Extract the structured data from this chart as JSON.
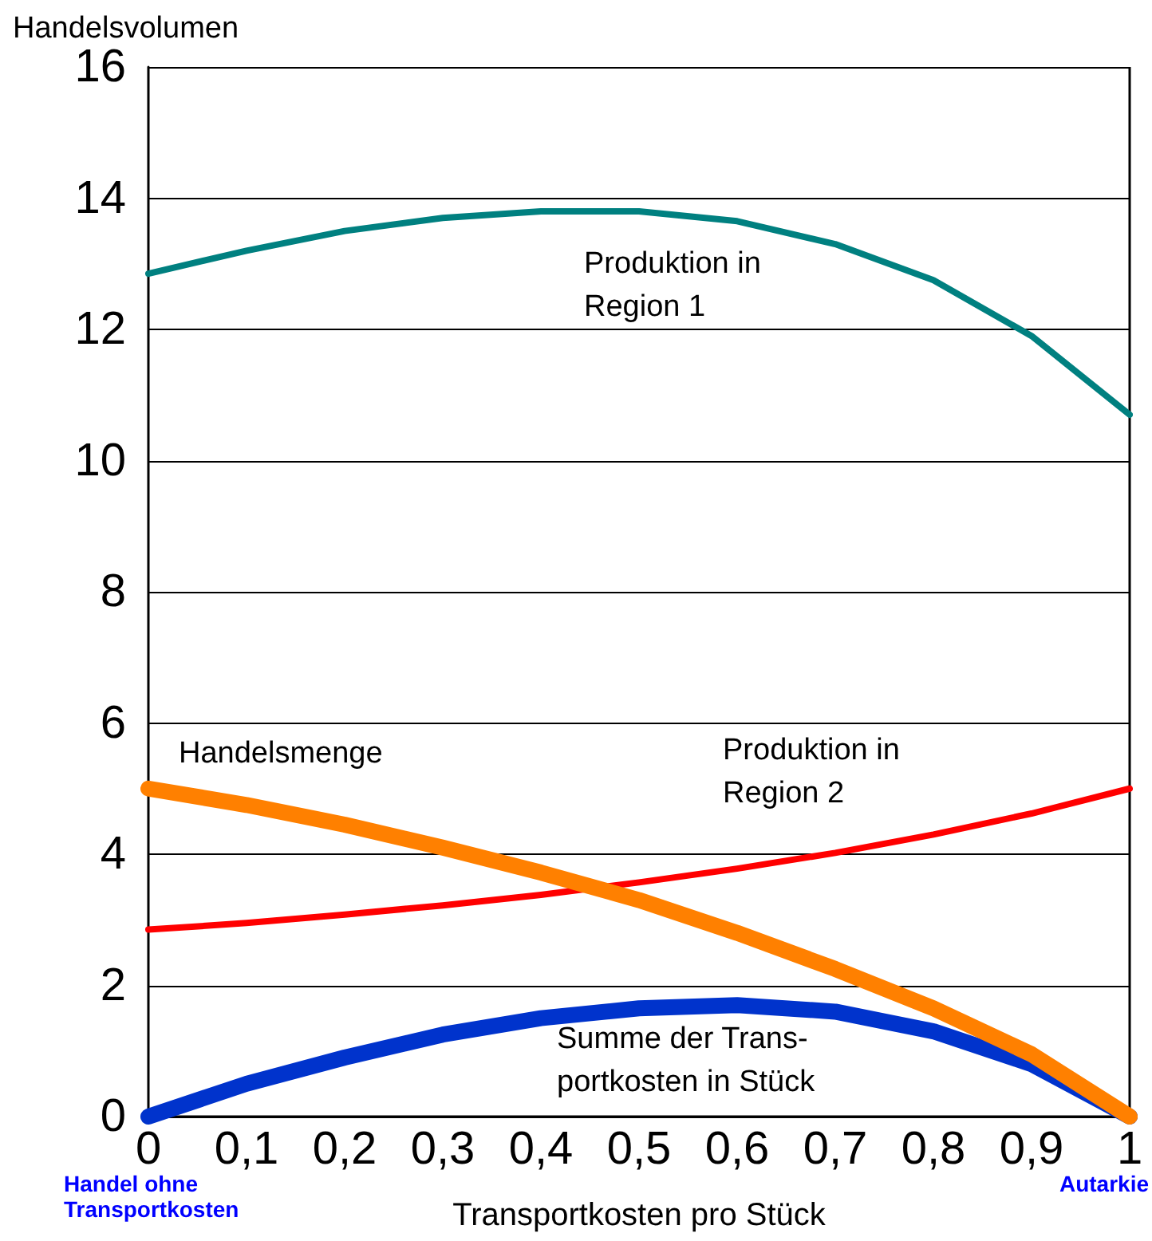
{
  "chart_data": {
    "type": "line",
    "xlabel": "Transportkosten pro Stück",
    "ylabel": "Handelsvolumen",
    "x": [
      0,
      0.1,
      0.2,
      0.3,
      0.4,
      0.5,
      0.6,
      0.7,
      0.8,
      0.9,
      1
    ],
    "series": [
      {
        "name": "Produktion in\nRegion 1",
        "color": "#008080",
        "values": [
          12.85,
          13.2,
          13.5,
          13.7,
          13.8,
          13.8,
          13.65,
          13.3,
          12.75,
          11.9,
          10.7
        ]
      },
      {
        "name": "Produktion in\nRegion 2",
        "color": "#ff0000",
        "values": [
          2.85,
          2.95,
          3.08,
          3.22,
          3.38,
          3.57,
          3.78,
          4.02,
          4.3,
          4.62,
          5.0
        ]
      },
      {
        "name": "Summe der Trans-\nportkosten in Stück",
        "color": "#0033cc",
        "values": [
          0,
          0.5,
          0.9,
          1.25,
          1.5,
          1.65,
          1.7,
          1.6,
          1.3,
          0.8,
          0
        ]
      },
      {
        "name": "Handelsmenge",
        "color": "#ff8000",
        "values": [
          5.0,
          4.75,
          4.45,
          4.1,
          3.72,
          3.3,
          2.8,
          2.25,
          1.65,
          0.95,
          0
        ]
      }
    ],
    "annotations": [
      "Handel ohne\nTransportkosten",
      "Autarkie"
    ],
    "xlim": [
      0,
      1
    ],
    "ylim": [
      0,
      16
    ],
    "xticks": [
      0,
      {
        "value": 0.1,
        "label": "0,1"
      },
      {
        "value": 0.2,
        "label": "0,2"
      },
      {
        "value": 0.3,
        "label": "0,3"
      },
      {
        "value": 0.4,
        "label": "0,4"
      },
      {
        "value": 0.5,
        "label": "0,5"
      },
      {
        "value": 0.6,
        "label": "0,6"
      },
      {
        "value": 0.7,
        "label": "0,7"
      },
      {
        "value": 0.8,
        "label": "0,8"
      },
      {
        "value": 0.9,
        "label": "0,9"
      },
      1
    ],
    "yticks": [
      0,
      2,
      4,
      6,
      8,
      10,
      12,
      14,
      16
    ],
    "grid": "y",
    "legend": false,
    "marker": "none",
    "line_style": "solid"
  }
}
